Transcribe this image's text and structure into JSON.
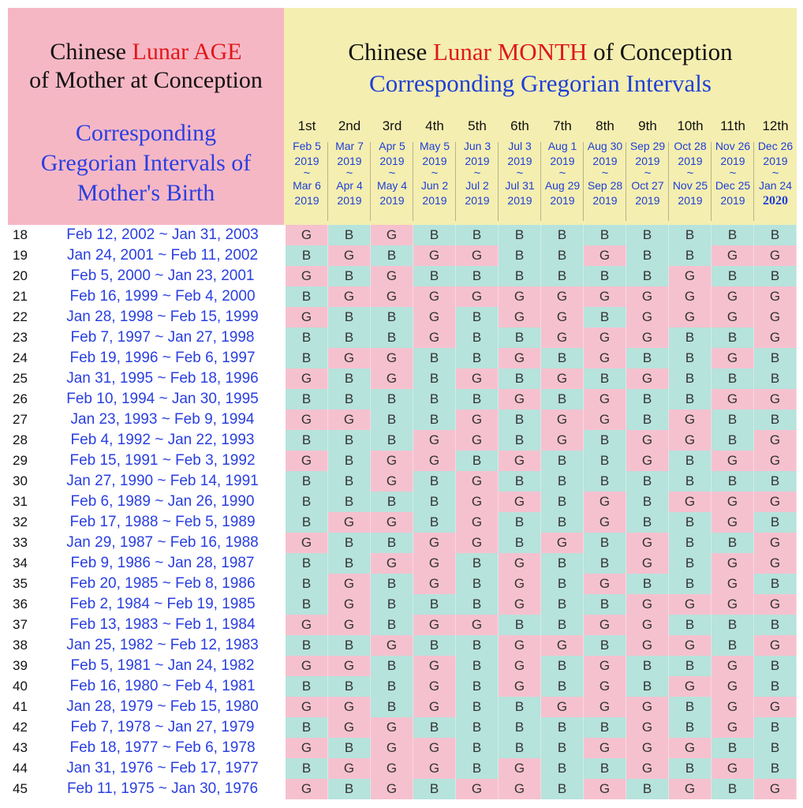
{
  "left_header": {
    "title_part1": "Chinese ",
    "title_highlight": "Lunar AGE",
    "title_line2": "of Mother at Conception",
    "subtitle_line1": "Corresponding",
    "subtitle_line2": "Gregorian Intervals of",
    "subtitle_line3": "Mother's Birth"
  },
  "right_header": {
    "title_part1": "Chinese ",
    "title_highlight": "Lunar MONTH",
    "title_part2": " of Conception",
    "subtitle": "Corresponding Gregorian Intervals"
  },
  "colors": {
    "girl": "#f6c1cf",
    "boy": "#b6e3dc",
    "left_bg": "#f6b7c5",
    "right_bg": "#f4eeb1",
    "blue_text": "#2a3fe0",
    "red_text": "#e01818"
  },
  "months": [
    {
      "name": "1st",
      "start": "Feb 5",
      "start_year": "2019",
      "tilde": "~",
      "end": "Mar 6",
      "end_year": "2019"
    },
    {
      "name": "2nd",
      "start": "Mar 7",
      "start_year": "2019",
      "tilde": "~",
      "end": "Apr 4",
      "end_year": "2019"
    },
    {
      "name": "3rd",
      "start": "Apr 5",
      "start_year": "2019",
      "tilde": "~",
      "end": "May 4",
      "end_year": "2019"
    },
    {
      "name": "4th",
      "start": "May 5",
      "start_year": "2019",
      "tilde": "~",
      "end": "Jun 2",
      "end_year": "2019"
    },
    {
      "name": "5th",
      "start": "Jun 3",
      "start_year": "2019",
      "tilde": "~",
      "end": "Jul 2",
      "end_year": "2019"
    },
    {
      "name": "6th",
      "start": "Jul 3",
      "start_year": "2019",
      "tilde": "~",
      "end": "Jul 31",
      "end_year": "2019"
    },
    {
      "name": "7th",
      "start": "Aug 1",
      "start_year": "2019",
      "tilde": "~",
      "end": "Aug 29",
      "end_year": "2019"
    },
    {
      "name": "8th",
      "start": "Aug 30",
      "start_year": "2019",
      "tilde": "~",
      "end": "Sep 28",
      "end_year": "2019"
    },
    {
      "name": "9th",
      "start": "Sep 29",
      "start_year": "2019",
      "tilde": "~",
      "end": "Oct 27",
      "end_year": "2019"
    },
    {
      "name": "10th",
      "start": "Oct 28",
      "start_year": "2019",
      "tilde": "~",
      "end": "Nov 25",
      "end_year": "2019"
    },
    {
      "name": "11th",
      "start": "Nov 26",
      "start_year": "2019",
      "tilde": "~",
      "end": "Dec 25",
      "end_year": "2019"
    },
    {
      "name": "12th",
      "start": "Dec 26",
      "start_year": "2019",
      "tilde": "~",
      "end": "Jan 24",
      "end_year": "2020"
    }
  ],
  "rows": [
    {
      "age": "18",
      "interval": "Feb 12, 2002 ~ Jan 31, 2003",
      "cells": [
        "G",
        "B",
        "G",
        "B",
        "B",
        "B",
        "B",
        "B",
        "B",
        "B",
        "B",
        "B"
      ]
    },
    {
      "age": "19",
      "interval": "Jan 24, 2001 ~ Feb 11, 2002",
      "cells": [
        "B",
        "G",
        "B",
        "G",
        "G",
        "B",
        "B",
        "G",
        "B",
        "B",
        "G",
        "G"
      ]
    },
    {
      "age": "20",
      "interval": "Feb 5, 2000 ~ Jan 23, 2001",
      "cells": [
        "G",
        "B",
        "G",
        "B",
        "B",
        "B",
        "B",
        "B",
        "B",
        "G",
        "B",
        "B"
      ]
    },
    {
      "age": "21",
      "interval": "Feb 16, 1999 ~ Feb 4, 2000",
      "cells": [
        "B",
        "G",
        "G",
        "G",
        "G",
        "G",
        "G",
        "G",
        "G",
        "G",
        "G",
        "G"
      ]
    },
    {
      "age": "22",
      "interval": "Jan 28, 1998 ~ Feb 15, 1999",
      "cells": [
        "G",
        "B",
        "B",
        "G",
        "B",
        "G",
        "G",
        "B",
        "G",
        "G",
        "G",
        "G"
      ]
    },
    {
      "age": "23",
      "interval": "Feb 7, 1997 ~ Jan 27, 1998",
      "cells": [
        "B",
        "B",
        "B",
        "G",
        "B",
        "B",
        "G",
        "G",
        "G",
        "B",
        "B",
        "G"
      ]
    },
    {
      "age": "24",
      "interval": "Feb 19, 1996 ~ Feb 6, 1997",
      "cells": [
        "B",
        "G",
        "G",
        "B",
        "B",
        "G",
        "B",
        "G",
        "B",
        "B",
        "G",
        "B"
      ]
    },
    {
      "age": "25",
      "interval": "Jan 31, 1995 ~ Feb 18, 1996",
      "cells": [
        "G",
        "B",
        "G",
        "B",
        "G",
        "B",
        "G",
        "B",
        "G",
        "B",
        "B",
        "B"
      ]
    },
    {
      "age": "26",
      "interval": "Feb 10, 1994 ~ Jan 30, 1995",
      "cells": [
        "B",
        "B",
        "B",
        "B",
        "B",
        "G",
        "B",
        "G",
        "B",
        "B",
        "G",
        "G"
      ]
    },
    {
      "age": "27",
      "interval": "Jan 23, 1993 ~ Feb 9, 1994",
      "cells": [
        "G",
        "G",
        "B",
        "B",
        "G",
        "B",
        "G",
        "G",
        "B",
        "G",
        "B",
        "B"
      ]
    },
    {
      "age": "28",
      "interval": "Feb 4, 1992 ~ Jan 22, 1993",
      "cells": [
        "B",
        "B",
        "B",
        "G",
        "G",
        "B",
        "G",
        "B",
        "G",
        "G",
        "B",
        "G"
      ]
    },
    {
      "age": "29",
      "interval": "Feb 15, 1991 ~ Feb 3, 1992",
      "cells": [
        "G",
        "B",
        "G",
        "G",
        "B",
        "G",
        "B",
        "B",
        "G",
        "B",
        "G",
        "G"
      ]
    },
    {
      "age": "30",
      "interval": "Jan 27, 1990 ~ Feb 14, 1991",
      "cells": [
        "B",
        "B",
        "G",
        "B",
        "G",
        "B",
        "B",
        "B",
        "B",
        "B",
        "B",
        "B"
      ]
    },
    {
      "age": "31",
      "interval": "Feb 6, 1989 ~ Jan 26, 1990",
      "cells": [
        "B",
        "B",
        "B",
        "B",
        "G",
        "G",
        "B",
        "G",
        "B",
        "G",
        "G",
        "G"
      ]
    },
    {
      "age": "32",
      "interval": "Feb 17, 1988 ~ Feb 5, 1989",
      "cells": [
        "B",
        "G",
        "G",
        "B",
        "G",
        "B",
        "B",
        "G",
        "B",
        "B",
        "G",
        "B"
      ]
    },
    {
      "age": "33",
      "interval": "Jan 29, 1987 ~ Feb 16, 1988",
      "cells": [
        "G",
        "B",
        "B",
        "G",
        "G",
        "B",
        "G",
        "B",
        "G",
        "B",
        "B",
        "G"
      ]
    },
    {
      "age": "34",
      "interval": "Feb 9, 1986 ~ Jan 28, 1987",
      "cells": [
        "B",
        "B",
        "G",
        "G",
        "B",
        "G",
        "B",
        "B",
        "G",
        "B",
        "G",
        "G"
      ]
    },
    {
      "age": "35",
      "interval": "Feb 20, 1985 ~ Feb 8, 1986",
      "cells": [
        "B",
        "G",
        "B",
        "G",
        "B",
        "G",
        "B",
        "G",
        "B",
        "B",
        "G",
        "B"
      ]
    },
    {
      "age": "36",
      "interval": "Feb 2, 1984 ~ Feb 19, 1985",
      "cells": [
        "B",
        "G",
        "B",
        "B",
        "B",
        "G",
        "B",
        "B",
        "G",
        "G",
        "G",
        "G"
      ]
    },
    {
      "age": "37",
      "interval": "Feb 13, 1983 ~ Feb 1, 1984",
      "cells": [
        "G",
        "G",
        "B",
        "G",
        "G",
        "B",
        "B",
        "G",
        "G",
        "B",
        "B",
        "B"
      ]
    },
    {
      "age": "38",
      "interval": "Jan 25, 1982 ~ Feb 12, 1983",
      "cells": [
        "B",
        "B",
        "G",
        "B",
        "B",
        "G",
        "G",
        "B",
        "G",
        "G",
        "B",
        "G"
      ]
    },
    {
      "age": "39",
      "interval": "Feb 5, 1981 ~ Jan 24, 1982",
      "cells": [
        "G",
        "G",
        "B",
        "G",
        "B",
        "G",
        "B",
        "G",
        "B",
        "B",
        "G",
        "B"
      ]
    },
    {
      "age": "40",
      "interval": "Feb 16, 1980 ~ Feb 4, 1981",
      "cells": [
        "B",
        "B",
        "B",
        "G",
        "B",
        "G",
        "B",
        "G",
        "B",
        "G",
        "G",
        "B"
      ]
    },
    {
      "age": "41",
      "interval": "Jan 28, 1979 ~ Feb 15, 1980",
      "cells": [
        "G",
        "G",
        "B",
        "G",
        "B",
        "B",
        "G",
        "G",
        "G",
        "B",
        "G",
        "G"
      ]
    },
    {
      "age": "42",
      "interval": "Feb 7, 1978 ~ Jan 27, 1979",
      "cells": [
        "B",
        "G",
        "G",
        "B",
        "B",
        "B",
        "B",
        "B",
        "G",
        "B",
        "G",
        "B"
      ]
    },
    {
      "age": "43",
      "interval": "Feb 18, 1977 ~ Feb 6, 1978",
      "cells": [
        "G",
        "B",
        "G",
        "G",
        "B",
        "B",
        "B",
        "G",
        "G",
        "G",
        "B",
        "B"
      ]
    },
    {
      "age": "44",
      "interval": "Jan 31, 1976 ~ Feb 17, 1977",
      "cells": [
        "B",
        "G",
        "G",
        "G",
        "B",
        "G",
        "B",
        "B",
        "G",
        "B",
        "G",
        "B"
      ]
    },
    {
      "age": "45",
      "interval": "Feb 11, 1975 ~ Jan 30, 1976",
      "cells": [
        "G",
        "B",
        "G",
        "B",
        "G",
        "G",
        "B",
        "G",
        "B",
        "G",
        "B",
        "G"
      ]
    }
  ]
}
